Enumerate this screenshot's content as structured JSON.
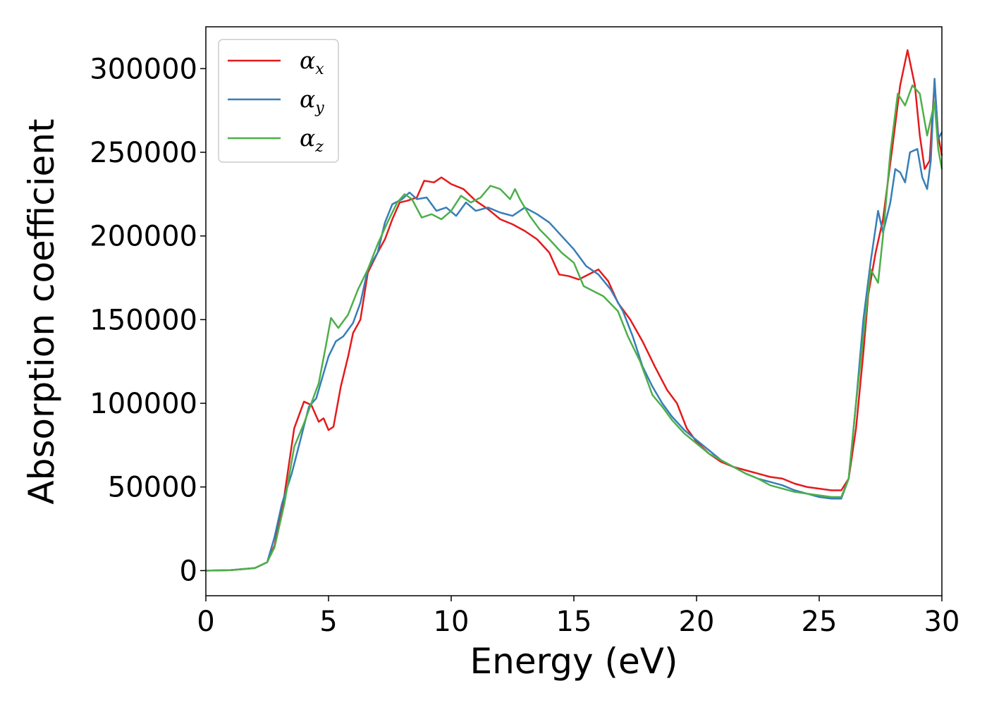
{
  "chart_data": {
    "type": "line",
    "title": "",
    "xlabel": "Energy (eV)",
    "ylabel": "Absorption coefficient",
    "xlim": [
      0,
      30
    ],
    "ylim": [
      -15000,
      325000
    ],
    "xticks": [
      0,
      5,
      10,
      15,
      20,
      25,
      30
    ],
    "yticks": [
      0,
      50000,
      100000,
      150000,
      200000,
      250000,
      300000
    ],
    "grid": false,
    "legend": "top-left",
    "series": [
      {
        "name": "α",
        "subscript": "x",
        "color": "#e41a1c",
        "points": [
          [
            0,
            0
          ],
          [
            1,
            300
          ],
          [
            2,
            1500
          ],
          [
            2.5,
            5000
          ],
          [
            2.8,
            15000
          ],
          [
            3.2,
            45000
          ],
          [
            3.6,
            85000
          ],
          [
            4.0,
            101000
          ],
          [
            4.3,
            99000
          ],
          [
            4.6,
            89000
          ],
          [
            4.8,
            91000
          ],
          [
            5.0,
            84000
          ],
          [
            5.2,
            86000
          ],
          [
            5.5,
            110000
          ],
          [
            5.8,
            128000
          ],
          [
            6.0,
            142000
          ],
          [
            6.3,
            150000
          ],
          [
            6.6,
            178000
          ],
          [
            7.0,
            190000
          ],
          [
            7.3,
            198000
          ],
          [
            7.6,
            210000
          ],
          [
            7.9,
            220000
          ],
          [
            8.2,
            221000
          ],
          [
            8.6,
            223000
          ],
          [
            8.9,
            233000
          ],
          [
            9.3,
            232000
          ],
          [
            9.6,
            235000
          ],
          [
            10.0,
            231000
          ],
          [
            10.5,
            228000
          ],
          [
            11.0,
            221000
          ],
          [
            11.5,
            216000
          ],
          [
            12.0,
            210000
          ],
          [
            12.5,
            207000
          ],
          [
            13.0,
            203000
          ],
          [
            13.5,
            198000
          ],
          [
            14.0,
            190000
          ],
          [
            14.4,
            177000
          ],
          [
            14.8,
            176000
          ],
          [
            15.2,
            174000
          ],
          [
            15.6,
            177000
          ],
          [
            16.0,
            180000
          ],
          [
            16.4,
            173000
          ],
          [
            16.8,
            160000
          ],
          [
            17.3,
            150000
          ],
          [
            17.8,
            137000
          ],
          [
            18.3,
            122000
          ],
          [
            18.8,
            108000
          ],
          [
            19.2,
            100000
          ],
          [
            19.6,
            85000
          ],
          [
            20.0,
            77000
          ],
          [
            20.5,
            70000
          ],
          [
            21.0,
            65000
          ],
          [
            21.5,
            62000
          ],
          [
            22.0,
            60000
          ],
          [
            22.5,
            58000
          ],
          [
            23.0,
            56000
          ],
          [
            23.5,
            55000
          ],
          [
            24.0,
            52000
          ],
          [
            24.5,
            50000
          ],
          [
            25.0,
            49000
          ],
          [
            25.5,
            48000
          ],
          [
            25.9,
            48000
          ],
          [
            26.2,
            55000
          ],
          [
            26.5,
            85000
          ],
          [
            26.8,
            130000
          ],
          [
            27.0,
            165000
          ],
          [
            27.3,
            190000
          ],
          [
            27.6,
            210000
          ],
          [
            28.0,
            255000
          ],
          [
            28.3,
            290000
          ],
          [
            28.6,
            311000
          ],
          [
            28.9,
            290000
          ],
          [
            29.1,
            260000
          ],
          [
            29.3,
            240000
          ],
          [
            29.5,
            245000
          ],
          [
            29.7,
            292000
          ],
          [
            29.85,
            260000
          ],
          [
            30.0,
            248000
          ]
        ]
      },
      {
        "name": "α",
        "subscript": "y",
        "color": "#377eb8",
        "points": [
          [
            0,
            0
          ],
          [
            1,
            300
          ],
          [
            2,
            1500
          ],
          [
            2.5,
            5000
          ],
          [
            2.8,
            20000
          ],
          [
            3.1,
            40000
          ],
          [
            3.5,
            58000
          ],
          [
            3.8,
            75000
          ],
          [
            4.2,
            98000
          ],
          [
            4.5,
            103000
          ],
          [
            4.8,
            118000
          ],
          [
            5.0,
            128000
          ],
          [
            5.3,
            137000
          ],
          [
            5.6,
            140000
          ],
          [
            6.0,
            148000
          ],
          [
            6.3,
            160000
          ],
          [
            6.6,
            180000
          ],
          [
            7.0,
            190000
          ],
          [
            7.3,
            208000
          ],
          [
            7.6,
            219000
          ],
          [
            8.0,
            222000
          ],
          [
            8.3,
            226000
          ],
          [
            8.6,
            222000
          ],
          [
            9.0,
            223000
          ],
          [
            9.4,
            215000
          ],
          [
            9.8,
            217000
          ],
          [
            10.2,
            212000
          ],
          [
            10.6,
            220000
          ],
          [
            11.0,
            215000
          ],
          [
            11.5,
            217000
          ],
          [
            12.0,
            214000
          ],
          [
            12.5,
            212000
          ],
          [
            13.0,
            217000
          ],
          [
            13.5,
            213000
          ],
          [
            14.0,
            208000
          ],
          [
            14.5,
            200000
          ],
          [
            15.0,
            192000
          ],
          [
            15.5,
            182000
          ],
          [
            16.0,
            177000
          ],
          [
            16.5,
            168000
          ],
          [
            17.0,
            155000
          ],
          [
            17.4,
            140000
          ],
          [
            17.8,
            122000
          ],
          [
            18.2,
            110000
          ],
          [
            18.6,
            100000
          ],
          [
            19.0,
            92000
          ],
          [
            19.5,
            84000
          ],
          [
            20.0,
            78000
          ],
          [
            20.5,
            72000
          ],
          [
            21.0,
            66000
          ],
          [
            21.5,
            62000
          ],
          [
            22.0,
            58000
          ],
          [
            22.5,
            55000
          ],
          [
            23.0,
            53000
          ],
          [
            23.5,
            51000
          ],
          [
            24.0,
            48000
          ],
          [
            24.5,
            46000
          ],
          [
            25.0,
            44000
          ],
          [
            25.5,
            43000
          ],
          [
            25.9,
            43000
          ],
          [
            26.2,
            55000
          ],
          [
            26.5,
            100000
          ],
          [
            26.8,
            150000
          ],
          [
            27.1,
            185000
          ],
          [
            27.4,
            215000
          ],
          [
            27.6,
            202000
          ],
          [
            27.9,
            220000
          ],
          [
            28.1,
            240000
          ],
          [
            28.3,
            238000
          ],
          [
            28.5,
            232000
          ],
          [
            28.7,
            250000
          ],
          [
            29.0,
            252000
          ],
          [
            29.2,
            235000
          ],
          [
            29.4,
            228000
          ],
          [
            29.55,
            245000
          ],
          [
            29.7,
            294000
          ],
          [
            29.85,
            258000
          ],
          [
            30.0,
            262000
          ]
        ]
      },
      {
        "name": "α",
        "subscript": "z",
        "color": "#4daf4a",
        "points": [
          [
            0,
            0
          ],
          [
            1,
            300
          ],
          [
            2,
            1500
          ],
          [
            2.5,
            5000
          ],
          [
            2.8,
            14000
          ],
          [
            3.2,
            40000
          ],
          [
            3.6,
            74000
          ],
          [
            4.0,
            88000
          ],
          [
            4.3,
            100000
          ],
          [
            4.6,
            112000
          ],
          [
            4.9,
            135000
          ],
          [
            5.1,
            151000
          ],
          [
            5.4,
            145000
          ],
          [
            5.8,
            153000
          ],
          [
            6.2,
            168000
          ],
          [
            6.6,
            180000
          ],
          [
            7.0,
            195000
          ],
          [
            7.4,
            208000
          ],
          [
            7.8,
            220000
          ],
          [
            8.1,
            225000
          ],
          [
            8.4,
            222000
          ],
          [
            8.8,
            211000
          ],
          [
            9.2,
            213000
          ],
          [
            9.6,
            210000
          ],
          [
            10.0,
            215000
          ],
          [
            10.4,
            224000
          ],
          [
            10.8,
            220000
          ],
          [
            11.2,
            223000
          ],
          [
            11.6,
            230000
          ],
          [
            12.0,
            228000
          ],
          [
            12.4,
            222000
          ],
          [
            12.6,
            228000
          ],
          [
            12.8,
            222000
          ],
          [
            13.2,
            212000
          ],
          [
            13.6,
            204000
          ],
          [
            14.0,
            198000
          ],
          [
            14.5,
            190000
          ],
          [
            15.0,
            184000
          ],
          [
            15.4,
            170000
          ],
          [
            15.8,
            167000
          ],
          [
            16.2,
            164000
          ],
          [
            16.8,
            155000
          ],
          [
            17.2,
            140000
          ],
          [
            17.7,
            125000
          ],
          [
            18.2,
            105000
          ],
          [
            18.6,
            98000
          ],
          [
            19.0,
            90000
          ],
          [
            19.5,
            82000
          ],
          [
            20.0,
            76000
          ],
          [
            20.5,
            70000
          ],
          [
            21.0,
            66000
          ],
          [
            21.5,
            62000
          ],
          [
            22.0,
            58000
          ],
          [
            22.5,
            55000
          ],
          [
            23.0,
            51000
          ],
          [
            23.5,
            49000
          ],
          [
            24.0,
            47000
          ],
          [
            24.5,
            46000
          ],
          [
            25.0,
            45000
          ],
          [
            25.5,
            44000
          ],
          [
            25.9,
            44000
          ],
          [
            26.2,
            55000
          ],
          [
            26.5,
            100000
          ],
          [
            26.8,
            140000
          ],
          [
            27.1,
            180000
          ],
          [
            27.4,
            172000
          ],
          [
            27.6,
            200000
          ],
          [
            27.9,
            250000
          ],
          [
            28.2,
            285000
          ],
          [
            28.5,
            278000
          ],
          [
            28.8,
            290000
          ],
          [
            29.1,
            285000
          ],
          [
            29.4,
            260000
          ],
          [
            29.7,
            280000
          ],
          [
            29.85,
            252000
          ],
          [
            30.0,
            240000
          ]
        ]
      }
    ]
  }
}
